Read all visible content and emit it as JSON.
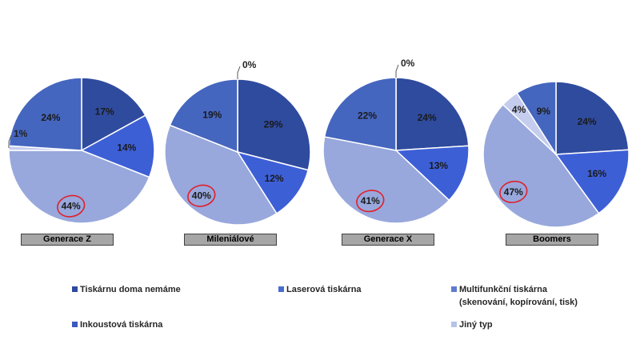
{
  "chart_data": {
    "type": "pie",
    "slice_order": [
      "Tiskárnu doma nemáme",
      "Inkoustová tiskárna",
      "Multifunkční tiskárna",
      "Jiný typ",
      "Laserová tiskárna"
    ],
    "series": [
      {
        "name": "Generace Z",
        "values": [
          17,
          14,
          44,
          1,
          24
        ],
        "labels": [
          "17%",
          "14%",
          "44%",
          "1%",
          "24%"
        ],
        "highlight": "44%"
      },
      {
        "name": "Mileniálové",
        "values": [
          29,
          12,
          40,
          0,
          19
        ],
        "labels": [
          "29%",
          "12%",
          "40%",
          "0%",
          "19%"
        ],
        "highlight": "40%"
      },
      {
        "name": "Generace X",
        "values": [
          24,
          13,
          41,
          0,
          22
        ],
        "labels": [
          "24%",
          "13%",
          "41%",
          "0%",
          "22%"
        ],
        "highlight": "41%"
      },
      {
        "name": "Boomers",
        "values": [
          24,
          16,
          47,
          4,
          9
        ],
        "labels": [
          "24%",
          "16%",
          "47%",
          "4%",
          "9%"
        ],
        "highlight": "47%"
      }
    ],
    "legend": [
      {
        "label": "Tiskárnu doma nemáme",
        "line2": "",
        "color": "#2f4b9e"
      },
      {
        "label": "Laserová tiskárna",
        "line2": "",
        "color": "#4a6bd0"
      },
      {
        "label": "Multifunkční tiskárna",
        "line2": "(skenování, kopírování, tisk)",
        "color": "#5f7ccd"
      },
      {
        "label": "Inkoustová tiskárna",
        "line2": "",
        "color": "#3d59c0"
      },
      {
        "label": "Jiný typ",
        "line2": "",
        "color": "#b7c2e8"
      }
    ],
    "slice_colors": {
      "Tiskárnu doma nemáme": "#2f4b9e",
      "Laserová tiskárna": "#4566bf",
      "Inkoustová tiskárna": "#3d5fd6",
      "Multifunkční tiskárna": "#98a8dc",
      "Jiný typ": "#c5cdee"
    },
    "highlight_color": "#e0202a"
  }
}
